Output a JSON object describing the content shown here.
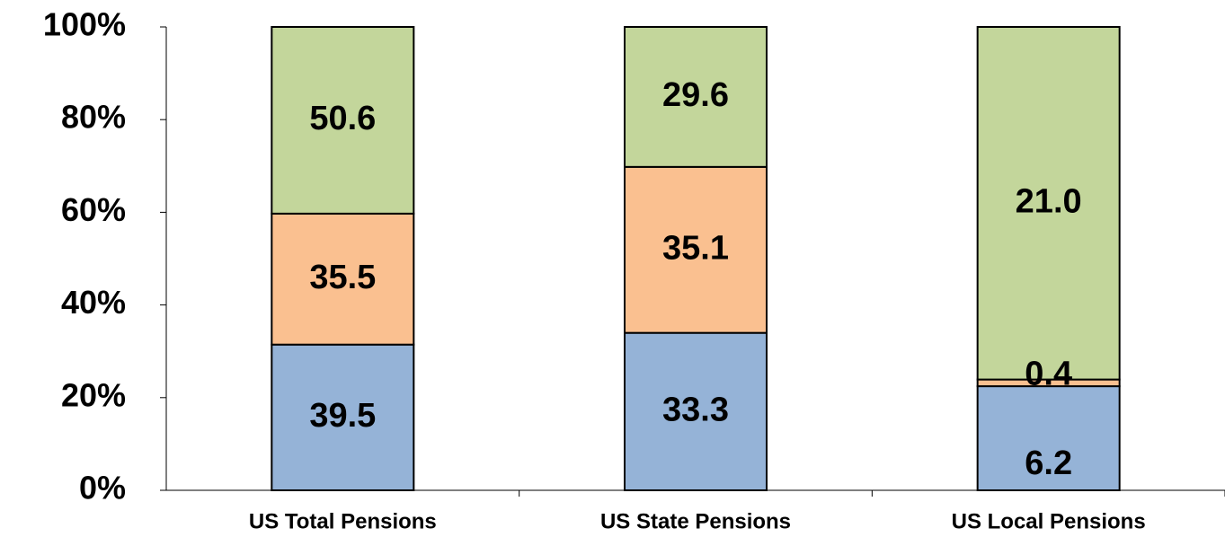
{
  "chart_data": {
    "type": "stacked_percent_bar",
    "categories": [
      "US Total Pensions",
      "US State Pensions",
      "US Local Pensions"
    ],
    "series": [
      {
        "color": "#95b3d7",
        "values": [
          39.5,
          33.3,
          6.2
        ]
      },
      {
        "color": "#fac090",
        "values": [
          35.5,
          35.1,
          0.4
        ]
      },
      {
        "color": "#c3d69b",
        "values": [
          50.6,
          29.6,
          21.0
        ]
      }
    ],
    "value_labels": [
      [
        "39.5",
        "33.3",
        "6.2"
      ],
      [
        "35.5",
        "35.1",
        "0.4"
      ],
      [
        "50.6",
        "29.6",
        "21.0"
      ]
    ],
    "ylim": [
      0,
      100
    ],
    "yticks": [
      {
        "value": 0,
        "label": "0%"
      },
      {
        "value": 20,
        "label": "20%"
      },
      {
        "value": 40,
        "label": "40%"
      },
      {
        "value": 60,
        "label": "60%"
      },
      {
        "value": 80,
        "label": "80%"
      },
      {
        "value": 100,
        "label": "100%"
      }
    ],
    "grid": false
  }
}
